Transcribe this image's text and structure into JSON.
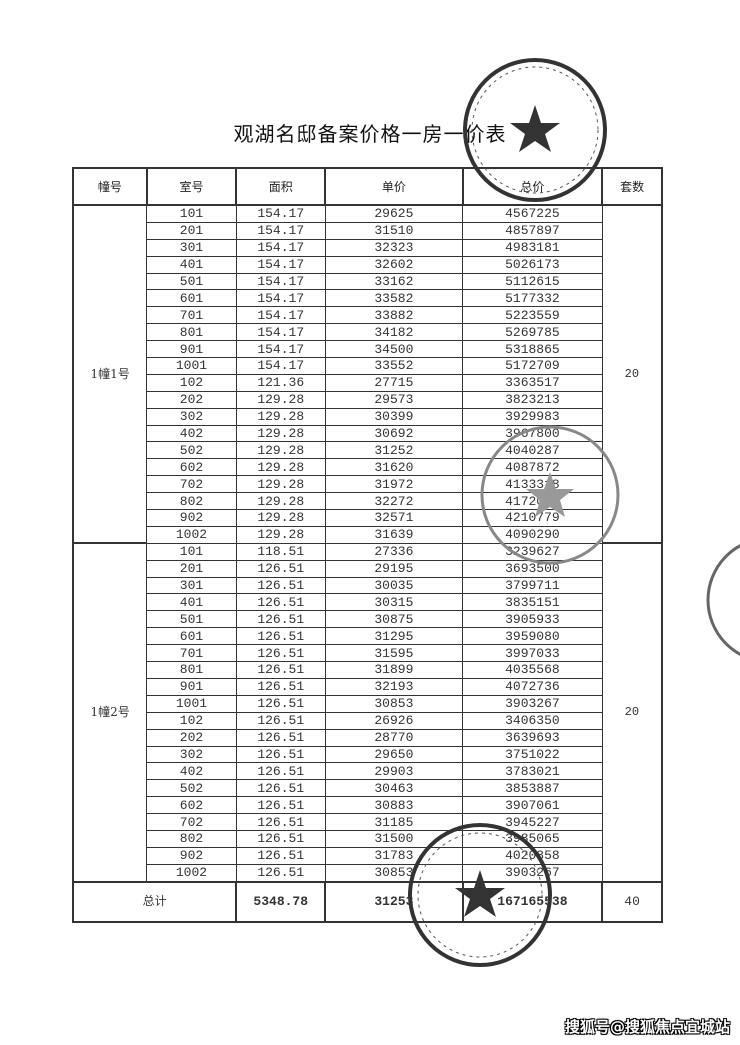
{
  "title": "观湖名邸备案价格一房一价表",
  "headers": [
    "幢号",
    "室号",
    "面积",
    "单价",
    "总价",
    "套数"
  ],
  "buildings": [
    {
      "name": "1幢1号",
      "count": "20",
      "rows": [
        [
          "101",
          "154.17",
          "29625",
          "4567225"
        ],
        [
          "201",
          "154.17",
          "31510",
          "4857897"
        ],
        [
          "301",
          "154.17",
          "32323",
          "4983181"
        ],
        [
          "401",
          "154.17",
          "32602",
          "5026173"
        ],
        [
          "501",
          "154.17",
          "33162",
          "5112615"
        ],
        [
          "601",
          "154.17",
          "33582",
          "5177332"
        ],
        [
          "701",
          "154.17",
          "33882",
          "5223559"
        ],
        [
          "801",
          "154.17",
          "34182",
          "5269785"
        ],
        [
          "901",
          "154.17",
          "34500",
          "5318865"
        ],
        [
          "1001",
          "154.17",
          "33552",
          "5172709"
        ],
        [
          "102",
          "121.36",
          "27715",
          "3363517"
        ],
        [
          "202",
          "129.28",
          "29573",
          "3823213"
        ],
        [
          "302",
          "129.28",
          "30399",
          "3929983"
        ],
        [
          "402",
          "129.28",
          "30692",
          "3967800"
        ],
        [
          "502",
          "129.28",
          "31252",
          "4040287"
        ],
        [
          "602",
          "129.28",
          "31620",
          "4087872"
        ],
        [
          "702",
          "129.28",
          "31972",
          "4133318"
        ],
        [
          "802",
          "129.28",
          "32272",
          "4172081"
        ],
        [
          "902",
          "129.28",
          "32571",
          "4210779"
        ],
        [
          "1002",
          "129.28",
          "31639",
          "4090290"
        ]
      ]
    },
    {
      "name": "1幢2号",
      "count": "20",
      "rows": [
        [
          "101",
          "118.51",
          "27336",
          "3239627"
        ],
        [
          "201",
          "126.51",
          "29195",
          "3693500"
        ],
        [
          "301",
          "126.51",
          "30035",
          "3799711"
        ],
        [
          "401",
          "126.51",
          "30315",
          "3835151"
        ],
        [
          "501",
          "126.51",
          "30875",
          "3905933"
        ],
        [
          "601",
          "126.51",
          "31295",
          "3959080"
        ],
        [
          "701",
          "126.51",
          "31595",
          "3997033"
        ],
        [
          "801",
          "126.51",
          "31899",
          "4035568"
        ],
        [
          "901",
          "126.51",
          "32193",
          "4072736"
        ],
        [
          "1001",
          "126.51",
          "30853",
          "3903267"
        ],
        [
          "102",
          "126.51",
          "26926",
          "3406350"
        ],
        [
          "202",
          "126.51",
          "28770",
          "3639693"
        ],
        [
          "302",
          "126.51",
          "29650",
          "3751022"
        ],
        [
          "402",
          "126.51",
          "29903",
          "3783021"
        ],
        [
          "502",
          "126.51",
          "30463",
          "3853887"
        ],
        [
          "602",
          "126.51",
          "30883",
          "3907061"
        ],
        [
          "702",
          "126.51",
          "31185",
          "3945227"
        ],
        [
          "802",
          "126.51",
          "31500",
          "3985065"
        ],
        [
          "902",
          "126.51",
          "31783",
          "4020858"
        ],
        [
          "1002",
          "126.51",
          "30853",
          "3903267"
        ]
      ]
    }
  ],
  "total": {
    "label": "总计",
    "area": "5348.78",
    "unit_price": "31253",
    "total_price": "167165538",
    "count": "40"
  },
  "watermark": "搜狐号@搜狐焦点宜城站",
  "colors": {
    "ink": "#222222",
    "stamp": "#333333"
  }
}
